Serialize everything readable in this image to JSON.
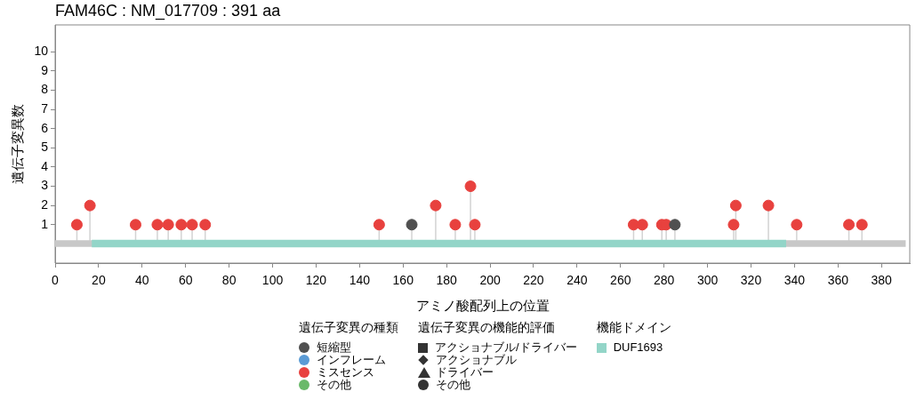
{
  "chart_data": [
    {
      "type": "lollipop",
      "title": "FAM46C : NM_017709 : 391 aa",
      "xlabel": "アミノ酸配列上の位置",
      "ylabel": "遺伝子変異数",
      "legend_title": [
        "遺伝子変異の種類",
        "遺伝子変異の機能的評価"
      ],
      "legend": "bottom",
      "marker": "circle",
      "grid": false,
      "tick_labels": "y",
      "xlim": [
        0,
        393
      ],
      "xticks": [
        0,
        20,
        40,
        60,
        80,
        100,
        120,
        140,
        160,
        180,
        200,
        220,
        240,
        260,
        280,
        300,
        320,
        340,
        360,
        380
      ],
      "ylim": [
        -1,
        11.4
      ],
      "yticks": [
        1,
        2,
        3,
        4,
        5,
        6,
        7,
        8,
        9,
        10
      ],
      "series": [
        {
          "name": "短縮型",
          "color": "#505050",
          "x": [
            164,
            285
          ],
          "values": [
            1,
            1
          ]
        },
        {
          "name": "インフレーム",
          "color": "#5b9bd5"
        },
        {
          "name": "ミスセンス",
          "color": "#e8413e",
          "x": [
            10,
            16,
            37,
            47,
            52,
            58,
            63,
            69,
            149,
            175,
            184,
            191,
            193,
            266,
            270,
            279,
            281,
            312,
            313,
            328,
            341,
            365,
            371
          ],
          "values": [
            1,
            2,
            1,
            1,
            1,
            1,
            1,
            1,
            1,
            2,
            1,
            3,
            1,
            1,
            1,
            1,
            1,
            1,
            2,
            2,
            1,
            1,
            1
          ]
        },
        {
          "name": "その他",
          "color": "#6ab96a"
        },
        {
          "name": "アクショナブル/ドライバー",
          "marker": "square",
          "color": "#333333"
        },
        {
          "name": "アクショナブル",
          "marker": "diamond",
          "color": "#333333"
        },
        {
          "name": "ドライバー",
          "marker": "triangle",
          "color": "#333333"
        },
        {
          "name": "その他",
          "marker": "circle",
          "color": "#333333"
        }
      ]
    },
    {
      "type": "bar",
      "orientation": "horizontal",
      "legend_title": "機能ドメイン",
      "legend": "bottom",
      "categories": [
        null
      ],
      "xlim": [
        0,
        393
      ],
      "xticks": [
        0,
        20,
        40,
        60,
        80,
        100,
        120,
        140,
        160,
        180,
        200,
        220,
        240,
        260,
        280,
        300,
        320,
        340,
        360,
        380
      ],
      "series": [
        {
          "color": "#c8c8c8",
          "base": [
            0
          ],
          "values": [
            391
          ]
        },
        {
          "name": "DUF1693",
          "color": "#93d5c8",
          "base": [
            17
          ],
          "values": [
            319
          ]
        }
      ]
    }
  ]
}
